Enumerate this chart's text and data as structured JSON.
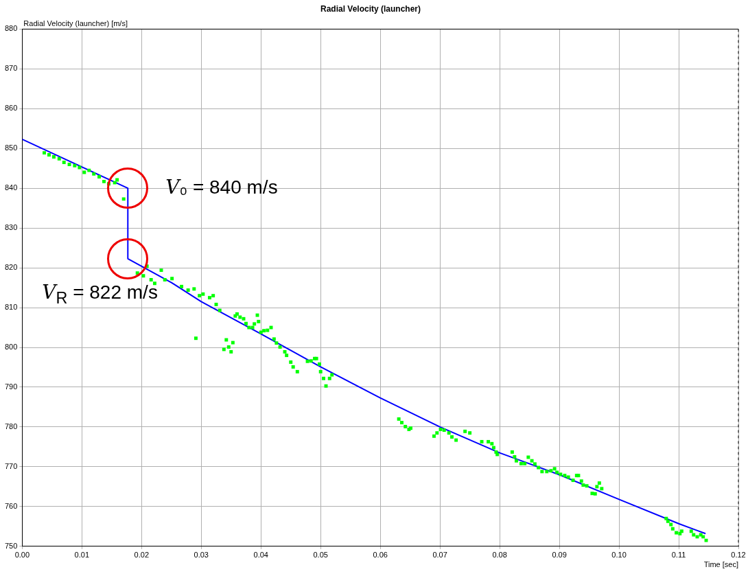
{
  "chart_data": {
    "type": "scatter",
    "title": "Radial Velocity (launcher)",
    "xlabel": "Time [sec]",
    "ylabel": "Radial Velocity (launcher) [m/s]",
    "xlim": [
      0,
      0.12
    ],
    "ylim": [
      750,
      880
    ],
    "xticks": [
      {
        "value": 0,
        "label": "0.00"
      },
      {
        "value": 0.01,
        "label": "0.01"
      },
      {
        "value": 0.02,
        "label": "0.02"
      },
      {
        "value": 0.03,
        "label": "0.03"
      },
      {
        "value": 0.04,
        "label": "0.04"
      },
      {
        "value": 0.05,
        "label": "0.05"
      },
      {
        "value": 0.06,
        "label": "0.06"
      },
      {
        "value": 0.07,
        "label": "0.07"
      },
      {
        "value": 0.08,
        "label": "0.08"
      },
      {
        "value": 0.09,
        "label": "0.09"
      },
      {
        "value": 0.1,
        "label": "0.10"
      },
      {
        "value": 0.11,
        "label": "0.11"
      },
      {
        "value": 0.12,
        "label": "0.12"
      }
    ],
    "yticks": [
      750,
      760,
      770,
      780,
      790,
      800,
      810,
      820,
      830,
      840,
      850,
      860,
      870,
      880
    ],
    "grid": true,
    "legend": false,
    "series": [
      {
        "color": "#00ff00",
        "marker": "square",
        "x": [
          0.0037,
          0.0045,
          0.0053,
          0.0062,
          0.007,
          0.0079,
          0.0088,
          0.0096,
          0.0104,
          0.0112,
          0.012,
          0.0129,
          0.0137,
          0.0145,
          0.0155,
          0.0159,
          0.017,
          0.0193,
          0.0203,
          0.0209,
          0.0216,
          0.0222,
          0.0233,
          0.0239,
          0.0251,
          0.0267,
          0.0278,
          0.0288,
          0.0291,
          0.0297,
          0.0303,
          0.0314,
          0.032,
          0.0325,
          0.0331,
          0.0338,
          0.0342,
          0.0346,
          0.035,
          0.0353,
          0.0357,
          0.036,
          0.0365,
          0.0371,
          0.0375,
          0.038,
          0.0386,
          0.0389,
          0.0394,
          0.0396,
          0.04,
          0.0405,
          0.0411,
          0.0417,
          0.0422,
          0.0426,
          0.0432,
          0.044,
          0.0443,
          0.045,
          0.0454,
          0.0461,
          0.0478,
          0.0484,
          0.049,
          0.0493,
          0.0498,
          0.05,
          0.0505,
          0.0509,
          0.0515,
          0.0519,
          0.0631,
          0.0636,
          0.0642,
          0.0648,
          0.0651,
          0.069,
          0.0695,
          0.0701,
          0.0707,
          0.0715,
          0.072,
          0.0727,
          0.0742,
          0.075,
          0.077,
          0.0781,
          0.0787,
          0.079,
          0.0794,
          0.0796,
          0.0821,
          0.0825,
          0.0828,
          0.0836,
          0.0842,
          0.0848,
          0.0854,
          0.0859,
          0.0865,
          0.0871,
          0.0879,
          0.0886,
          0.0892,
          0.0896,
          0.0902,
          0.0909,
          0.0915,
          0.0923,
          0.0929,
          0.0932,
          0.0937,
          0.094,
          0.0946,
          0.0955,
          0.096,
          0.0963,
          0.0967,
          0.0971,
          0.1079,
          0.1082,
          0.1087,
          0.109,
          0.1096,
          0.1102,
          0.1105,
          0.1121,
          0.1125,
          0.1131,
          0.1137,
          0.1141,
          0.1146
        ],
        "values": [
          848.9,
          848.4,
          847.9,
          847.4,
          846.5,
          846.0,
          845.7,
          845.2,
          844.0,
          844.5,
          843.6,
          842.9,
          841.7,
          841.1,
          841.4,
          842.1,
          837.3,
          818.7,
          818.0,
          820.4,
          817.0,
          816.1,
          819.4,
          817.0,
          817.3,
          815.3,
          814.4,
          814.7,
          802.3,
          813.0,
          813.4,
          812.5,
          813.0,
          810.8,
          809.3,
          799.5,
          801.9,
          800.1,
          798.9,
          801.2,
          807.9,
          808.4,
          807.6,
          807.2,
          806.0,
          805.0,
          805.0,
          805.9,
          808.1,
          806.5,
          803.8,
          804.2,
          804.3,
          805.0,
          802.1,
          801.1,
          800.1,
          798.9,
          798.0,
          796.3,
          795.1,
          793.9,
          796.5,
          796.6,
          797.2,
          797.2,
          795.8,
          793.9,
          792.2,
          790.3,
          792.2,
          793.1,
          782.0,
          781.1,
          780.1,
          779.4,
          779.7,
          777.7,
          778.5,
          779.4,
          779.2,
          778.5,
          777.5,
          776.7,
          778.9,
          778.5,
          776.3,
          776.3,
          775.8,
          774.8,
          773.7,
          773.1,
          773.7,
          772.5,
          771.5,
          770.8,
          770.8,
          772.4,
          771.5,
          770.7,
          769.8,
          768.8,
          768.8,
          769.0,
          769.5,
          768.6,
          768.1,
          767.8,
          767.4,
          766.6,
          767.8,
          767.8,
          766.4,
          765.4,
          765.2,
          763.3,
          763.2,
          765.0,
          765.9,
          764.5,
          757.0,
          756.3,
          755.5,
          754.4,
          753.4,
          753.2,
          753.8,
          753.8,
          752.9,
          752.4,
          752.9,
          752.4,
          751.5
        ]
      },
      {
        "type": "line",
        "color": "#0000ff",
        "marker": "none",
        "x": [
          0,
          0.0177,
          0.0177,
          0.025,
          0.03,
          0.04,
          0.05,
          0.06,
          0.07,
          0.08,
          0.09,
          0.1,
          0.11,
          0.1145
        ],
        "values": [
          852.3,
          840,
          822.3,
          816.3,
          811.5,
          803.4,
          795.1,
          787.3,
          780.0,
          773.5,
          768.0,
          761.8,
          755.7,
          753.2
        ]
      }
    ],
    "annotations": [
      {
        "text": "V₀ = 840 m/s",
        "x": 0.0177,
        "y": 840
      },
      {
        "text": "V$_{R}$ = 822 m/s",
        "x": 0.0177,
        "y": 822.3
      }
    ]
  }
}
